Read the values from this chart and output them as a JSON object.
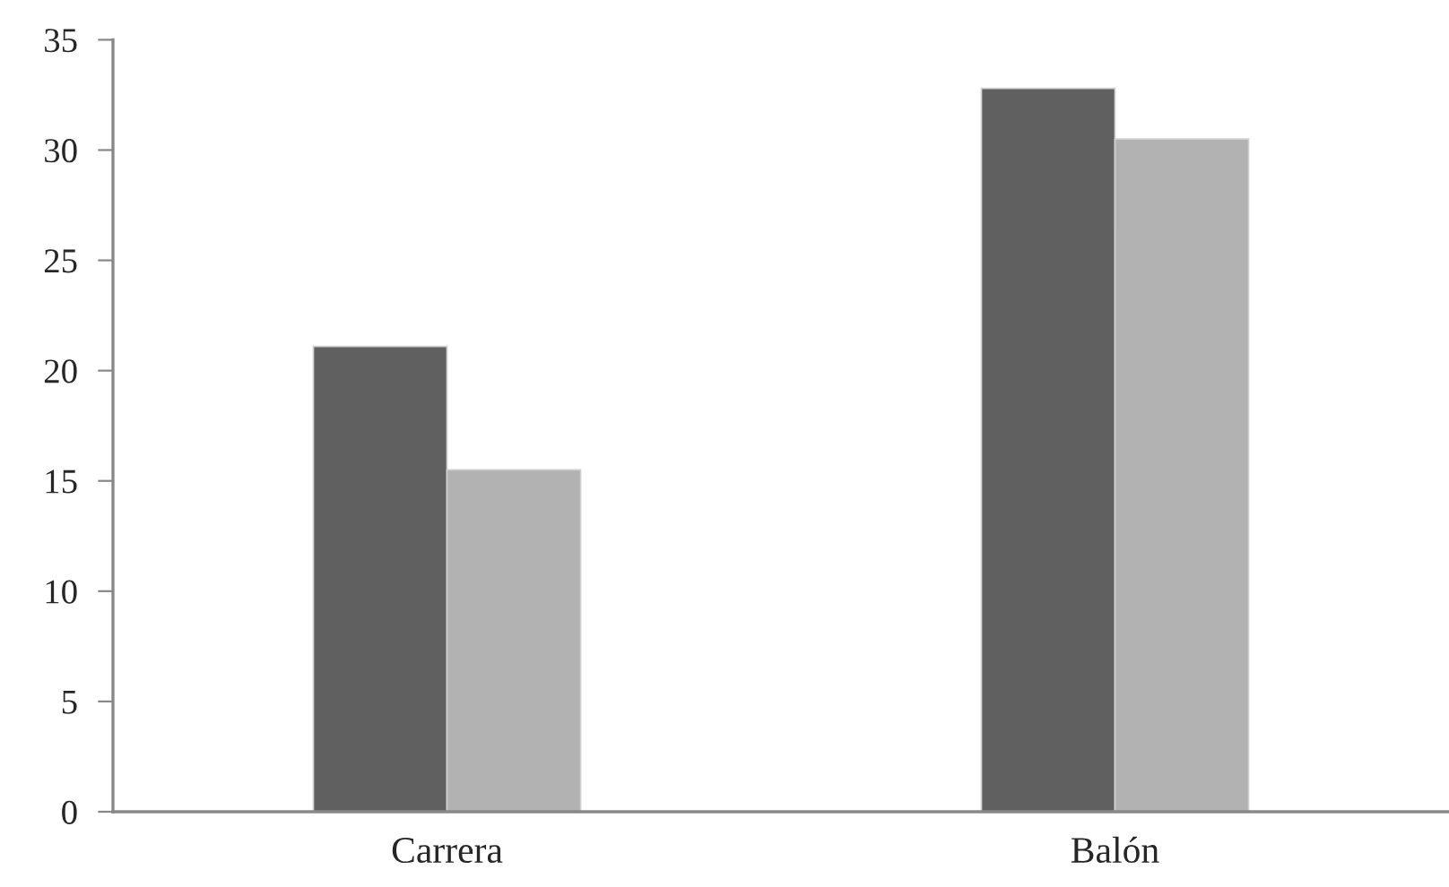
{
  "chart_data": {
    "type": "bar",
    "categories": [
      "Carrera",
      "Balón"
    ],
    "series": [
      {
        "color": "#606060",
        "values": [
          21.1,
          32.8
        ]
      },
      {
        "color": "#b2b2b2",
        "values": [
          15.5,
          30.5
        ]
      }
    ],
    "ylim": [
      0,
      35
    ],
    "yticks": [
      0,
      5,
      10,
      15,
      20,
      25,
      30,
      35
    ],
    "grid": false
  }
}
